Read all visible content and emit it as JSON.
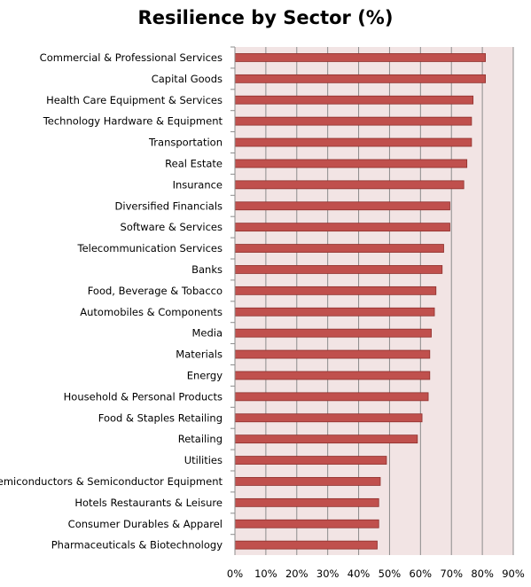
{
  "chart_data": {
    "type": "bar",
    "orientation": "horizontal",
    "title": "Resilience by Sector (%)",
    "xlabel": "",
    "ylabel": "",
    "xlim": [
      0,
      90
    ],
    "x_ticks": [
      "0%",
      "10%",
      "20%",
      "30%",
      "40%",
      "50%",
      "60%",
      "70%",
      "80%",
      "90%"
    ],
    "grid": true,
    "bar_color": "#C0504D",
    "plot_background": "#F2E4E4",
    "categories": [
      "Commercial & Professional Services",
      "Capital Goods",
      "Health Care Equipment & Services",
      "Technology Hardware & Equipment",
      "Transportation",
      "Real Estate",
      "Insurance",
      "Diversified Financials",
      "Software & Services",
      "Telecommunication Services",
      "Banks",
      "Food, Beverage & Tobacco",
      "Automobiles & Components",
      "Media",
      "Materials",
      "Energy",
      "Household & Personal Products",
      "Food & Staples Retailing",
      "Retailing",
      "Utilities",
      "Semiconductors & Semiconductor Equipment",
      "Hotels Restaurants & Leisure",
      "Consumer Durables & Apparel",
      "Pharmaceuticals & Biotechnology"
    ],
    "values": [
      81,
      81,
      77,
      76.5,
      76.5,
      75,
      74,
      69.5,
      69.5,
      67.5,
      67,
      65,
      64.5,
      63.5,
      63,
      63,
      62.5,
      60.5,
      59,
      49,
      47,
      46.5,
      46.5,
      46
    ]
  }
}
